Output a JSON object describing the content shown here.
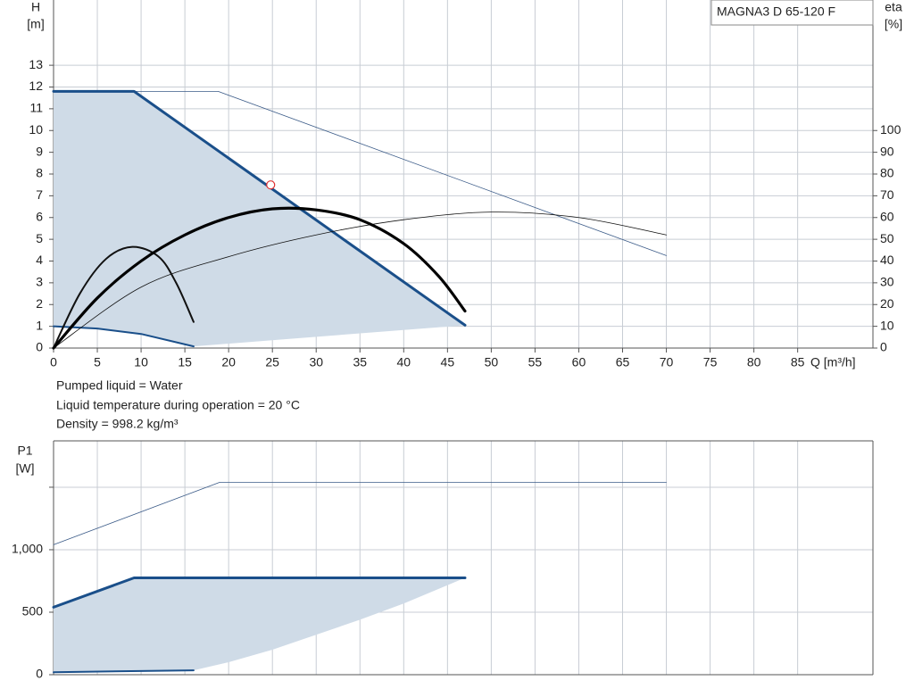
{
  "chart_data": [
    {
      "type": "line",
      "title": "MAGNA3 D 65-120 F",
      "ylabel": "H",
      "yunit": "[m]",
      "y2label": "eta",
      "y2unit": "[%]",
      "xlabel": "Q [m³/h]",
      "xlim": [
        0,
        93.6
      ],
      "ylim": [
        0,
        16
      ],
      "y2lim": [
        0,
        160
      ],
      "xticks": [
        0,
        5,
        10,
        15,
        20,
        25,
        30,
        35,
        40,
        45,
        50,
        55,
        60,
        65,
        70,
        75,
        80,
        85
      ],
      "yticks": [
        0,
        1,
        2,
        3,
        4,
        5,
        6,
        7,
        8,
        9,
        10,
        11,
        12,
        13
      ],
      "y2ticks": [
        0,
        10,
        20,
        30,
        40,
        50,
        60,
        70,
        80,
        90,
        100
      ],
      "grid": true,
      "notes": [
        "Pumped liquid = Water",
        "Liquid temperature during operation = 20 °C",
        "Density = 998.2 kg/m³"
      ],
      "series": [
        {
          "kind": "area",
          "color": "#cfdbe7",
          "x": [
            0,
            9.2,
            47,
            16,
            10,
            5,
            0
          ],
          "values": [
            11.8,
            11.8,
            1.05,
            0.08,
            0.65,
            0.9,
            1.0
          ]
        },
        {
          "kind": "line",
          "color": "#3b5b88",
          "width": 0.8,
          "x": [
            0,
            18.8,
            70
          ],
          "values": [
            11.8,
            11.8,
            4.25
          ]
        },
        {
          "kind": "line",
          "color": "#1a4f8a",
          "width": 3,
          "x": [
            0,
            9.2,
            47
          ],
          "values": [
            11.8,
            11.8,
            1.05
          ]
        },
        {
          "kind": "line",
          "color": "#1a4f8a",
          "width": 2,
          "x": [
            0,
            5,
            10,
            16
          ],
          "values": [
            1.0,
            0.9,
            0.65,
            0.08
          ]
        },
        {
          "kind": "line",
          "axis": "y2",
          "color": "#111",
          "width": 0.8,
          "x": [
            0,
            10,
            20,
            30,
            40,
            50,
            60,
            70
          ],
          "values": [
            0,
            28,
            42,
            52,
            59,
            62.5,
            60,
            52
          ]
        },
        {
          "kind": "line",
          "axis": "y2",
          "color": "#111",
          "width": 2,
          "x": [
            0,
            3,
            6,
            9,
            12,
            14,
            16
          ],
          "values": [
            0,
            25,
            41,
            46.5,
            42,
            30,
            12
          ]
        },
        {
          "kind": "line",
          "axis": "y2",
          "color": "#000",
          "width": 3.2,
          "x": [
            0,
            5,
            10,
            15,
            20,
            25,
            30,
            35,
            40,
            44,
            47
          ],
          "values": [
            0,
            23,
            40,
            52,
            60,
            64,
            63.5,
            59,
            48,
            33,
            17
          ]
        },
        {
          "kind": "marker",
          "color": "#e03030",
          "x": [
            24.8
          ],
          "values": [
            7.5
          ]
        }
      ]
    },
    {
      "type": "line",
      "ylabel": "P1",
      "yunit": "[W]",
      "xlim": [
        0,
        93.6
      ],
      "ylim": [
        0,
        1871
      ],
      "yticks": [
        0,
        500,
        {
          "value": 1000,
          "label": "1,000"
        }
      ],
      "yticks_minor": [
        1500
      ],
      "grid": true,
      "series": [
        {
          "kind": "area",
          "color": "#cfdbe7",
          "x": [
            0,
            9.2,
            47,
            40,
            35,
            30,
            25,
            20,
            16,
            0
          ],
          "values": [
            540,
            775,
            775,
            570,
            440,
            320,
            200,
            100,
            35,
            20
          ]
        },
        {
          "kind": "line",
          "color": "#3b5b88",
          "width": 0.8,
          "x": [
            0,
            19,
            70
          ],
          "values": [
            1040,
            1540,
            1540
          ]
        },
        {
          "kind": "line",
          "color": "#1a4f8a",
          "width": 3,
          "x": [
            0,
            9.2,
            47
          ],
          "values": [
            540,
            775,
            775
          ]
        },
        {
          "kind": "line",
          "color": "#1a4f8a",
          "width": 2,
          "x": [
            0,
            16
          ],
          "values": [
            20,
            35
          ]
        }
      ]
    }
  ]
}
